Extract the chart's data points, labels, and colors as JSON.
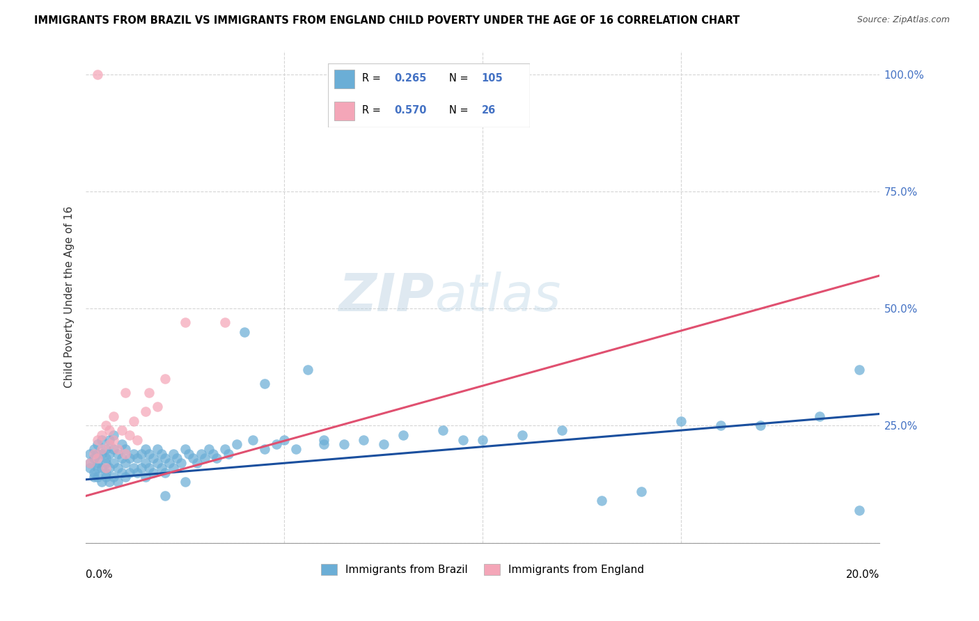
{
  "title": "IMMIGRANTS FROM BRAZIL VS IMMIGRANTS FROM ENGLAND CHILD POVERTY UNDER THE AGE OF 16 CORRELATION CHART",
  "source": "Source: ZipAtlas.com",
  "ylabel": "Child Poverty Under the Age of 16",
  "ytick_values": [
    0.0,
    0.25,
    0.5,
    0.75,
    1.0
  ],
  "ytick_labels_right": [
    "",
    "25.0%",
    "50.0%",
    "75.0%",
    "100.0%"
  ],
  "xlim": [
    0.0,
    0.2
  ],
  "ylim": [
    0.0,
    1.05
  ],
  "legend_brazil": "Immigrants from Brazil",
  "legend_england": "Immigrants from England",
  "R_brazil": "0.265",
  "N_brazil": "105",
  "R_england": "0.570",
  "N_england": "26",
  "brazil_color": "#6baed6",
  "england_color": "#f4a6b8",
  "brazil_line_color": "#1a4f9e",
  "england_line_color": "#e05070",
  "brazil_line_x": [
    0.0,
    0.2
  ],
  "brazil_line_y": [
    0.135,
    0.275
  ],
  "england_line_x": [
    0.0,
    0.2
  ],
  "england_line_y": [
    0.1,
    0.57
  ],
  "watermark_text": "ZIPatlas",
  "brazil_scatter_x": [
    0.001,
    0.001,
    0.001,
    0.002,
    0.002,
    0.002,
    0.002,
    0.003,
    0.003,
    0.003,
    0.003,
    0.003,
    0.004,
    0.004,
    0.004,
    0.004,
    0.005,
    0.005,
    0.005,
    0.005,
    0.005,
    0.006,
    0.006,
    0.006,
    0.006,
    0.007,
    0.007,
    0.007,
    0.007,
    0.008,
    0.008,
    0.008,
    0.009,
    0.009,
    0.009,
    0.01,
    0.01,
    0.01,
    0.011,
    0.011,
    0.012,
    0.012,
    0.013,
    0.013,
    0.014,
    0.014,
    0.015,
    0.015,
    0.015,
    0.016,
    0.016,
    0.017,
    0.017,
    0.018,
    0.018,
    0.019,
    0.019,
    0.02,
    0.02,
    0.021,
    0.022,
    0.022,
    0.023,
    0.024,
    0.025,
    0.026,
    0.027,
    0.028,
    0.029,
    0.03,
    0.031,
    0.032,
    0.033,
    0.035,
    0.036,
    0.038,
    0.04,
    0.042,
    0.045,
    0.048,
    0.05,
    0.053,
    0.056,
    0.06,
    0.065,
    0.07,
    0.075,
    0.08,
    0.09,
    0.095,
    0.1,
    0.11,
    0.12,
    0.13,
    0.14,
    0.15,
    0.16,
    0.17,
    0.185,
    0.195,
    0.02,
    0.025,
    0.045,
    0.06,
    0.195
  ],
  "brazil_scatter_y": [
    0.17,
    0.19,
    0.16,
    0.15,
    0.18,
    0.2,
    0.14,
    0.16,
    0.19,
    0.21,
    0.14,
    0.17,
    0.13,
    0.16,
    0.19,
    0.22,
    0.14,
    0.17,
    0.2,
    0.15,
    0.18,
    0.13,
    0.16,
    0.19,
    0.22,
    0.14,
    0.17,
    0.2,
    0.23,
    0.13,
    0.16,
    0.19,
    0.15,
    0.18,
    0.21,
    0.14,
    0.17,
    0.2,
    0.15,
    0.18,
    0.16,
    0.19,
    0.15,
    0.18,
    0.16,
    0.19,
    0.14,
    0.17,
    0.2,
    0.16,
    0.19,
    0.15,
    0.18,
    0.17,
    0.2,
    0.16,
    0.19,
    0.15,
    0.18,
    0.17,
    0.16,
    0.19,
    0.18,
    0.17,
    0.2,
    0.19,
    0.18,
    0.17,
    0.19,
    0.18,
    0.2,
    0.19,
    0.18,
    0.2,
    0.19,
    0.21,
    0.45,
    0.22,
    0.2,
    0.21,
    0.22,
    0.2,
    0.37,
    0.22,
    0.21,
    0.22,
    0.21,
    0.23,
    0.24,
    0.22,
    0.22,
    0.23,
    0.24,
    0.09,
    0.11,
    0.26,
    0.25,
    0.25,
    0.27,
    0.37,
    0.1,
    0.13,
    0.34,
    0.21,
    0.07
  ],
  "england_scatter_x": [
    0.001,
    0.002,
    0.003,
    0.003,
    0.004,
    0.004,
    0.005,
    0.005,
    0.006,
    0.006,
    0.007,
    0.007,
    0.008,
    0.009,
    0.01,
    0.01,
    0.011,
    0.012,
    0.013,
    0.015,
    0.016,
    0.018,
    0.02,
    0.025,
    0.035,
    0.003
  ],
  "england_scatter_y": [
    0.17,
    0.19,
    0.22,
    0.18,
    0.2,
    0.23,
    0.16,
    0.25,
    0.21,
    0.24,
    0.27,
    0.22,
    0.2,
    0.24,
    0.19,
    0.32,
    0.23,
    0.26,
    0.22,
    0.28,
    0.32,
    0.29,
    0.35,
    0.47,
    0.47,
    1.0
  ]
}
